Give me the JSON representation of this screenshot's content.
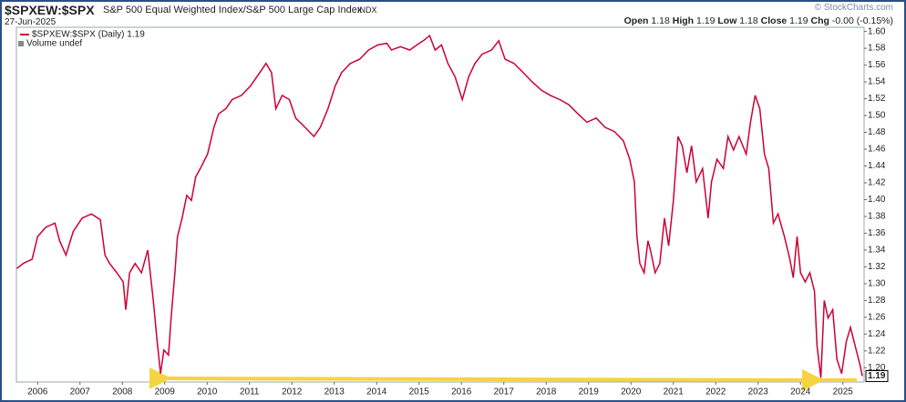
{
  "header": {
    "symbol": "$SPXEW:$SPX",
    "description": "S&P 500 Equal Weighted Index/S&P 500 Large Cap Index",
    "exchange": "INDX",
    "date": "27-Jun-2025",
    "brand": "© StockCharts.com",
    "quote": {
      "open_label": "Open",
      "open": 1.18,
      "high_label": "High",
      "high": 1.19,
      "low_label": "Low",
      "low": 1.18,
      "close_label": "Close",
      "close": 1.19,
      "chg_label": "Chg",
      "chg": "-0.00 (-0.15%)"
    }
  },
  "chart_data": {
    "type": "line",
    "volume_note": "Volume undef",
    "last_label": "1.19",
    "x": [
      2005.51,
      2005.66,
      2005.87,
      2006.0,
      2006.19,
      2006.41,
      2006.52,
      2006.67,
      2006.84,
      2007.05,
      2007.27,
      2007.48,
      2007.59,
      2007.7,
      2007.87,
      2008.02,
      2008.08,
      2008.17,
      2008.3,
      2008.45,
      2008.6,
      2008.73,
      2008.81,
      2008.9,
      2008.98,
      2009.09,
      2009.15,
      2009.24,
      2009.3,
      2009.41,
      2009.52,
      2009.63,
      2009.73,
      2009.84,
      2010.01,
      2010.16,
      2010.27,
      2010.44,
      2010.59,
      2010.81,
      2011.02,
      2011.24,
      2011.39,
      2011.52,
      2011.62,
      2011.77,
      2011.94,
      2012.09,
      2012.31,
      2012.52,
      2012.67,
      2012.85,
      2013.02,
      2013.17,
      2013.38,
      2013.6,
      2013.81,
      2014.03,
      2014.24,
      2014.35,
      2014.56,
      2014.78,
      2014.95,
      2015.1,
      2015.25,
      2015.38,
      2015.53,
      2015.68,
      2015.85,
      2016.02,
      2016.17,
      2016.32,
      2016.49,
      2016.71,
      2016.88,
      2017.03,
      2017.24,
      2017.46,
      2017.67,
      2017.89,
      2018.1,
      2018.32,
      2018.53,
      2018.75,
      2018.96,
      2019.18,
      2019.39,
      2019.61,
      2019.82,
      2019.97,
      2020.08,
      2020.14,
      2020.21,
      2020.31,
      2020.4,
      2020.46,
      2020.57,
      2020.68,
      2020.79,
      2020.89,
      2021.0,
      2021.11,
      2021.21,
      2021.32,
      2021.43,
      2021.54,
      2021.69,
      2021.82,
      2021.9,
      2022.03,
      2022.18,
      2022.29,
      2022.42,
      2022.55,
      2022.72,
      2022.82,
      2022.93,
      2023.04,
      2023.15,
      2023.25,
      2023.36,
      2023.47,
      2023.62,
      2023.75,
      2023.83,
      2023.92,
      2024.0,
      2024.11,
      2024.22,
      2024.33,
      2024.39,
      2024.48,
      2024.56,
      2024.65,
      2024.76,
      2024.86,
      2024.97,
      2025.08,
      2025.18,
      2025.29,
      2025.4,
      2025.46
    ],
    "series": [
      {
        "name": "$SPXEW:$SPX (Daily) 1.19",
        "color": "#cc0033",
        "values": [
          1.318,
          1.324,
          1.329,
          1.356,
          1.367,
          1.372,
          1.351,
          1.334,
          1.362,
          1.378,
          1.383,
          1.376,
          1.334,
          1.324,
          1.313,
          1.302,
          1.269,
          1.313,
          1.324,
          1.313,
          1.34,
          1.28,
          1.237,
          1.193,
          1.221,
          1.215,
          1.259,
          1.313,
          1.356,
          1.378,
          1.405,
          1.399,
          1.427,
          1.437,
          1.454,
          1.486,
          1.502,
          1.508,
          1.519,
          1.524,
          1.535,
          1.551,
          1.562,
          1.551,
          1.508,
          1.524,
          1.519,
          1.497,
          1.486,
          1.475,
          1.486,
          1.508,
          1.535,
          1.551,
          1.562,
          1.567,
          1.578,
          1.584,
          1.586,
          1.578,
          1.582,
          1.578,
          1.584,
          1.589,
          1.595,
          1.578,
          1.584,
          1.562,
          1.546,
          1.519,
          1.546,
          1.562,
          1.573,
          1.578,
          1.589,
          1.567,
          1.562,
          1.551,
          1.54,
          1.53,
          1.524,
          1.519,
          1.513,
          1.502,
          1.492,
          1.497,
          1.486,
          1.481,
          1.47,
          1.448,
          1.421,
          1.356,
          1.324,
          1.313,
          1.351,
          1.34,
          1.313,
          1.324,
          1.378,
          1.345,
          1.399,
          1.475,
          1.464,
          1.432,
          1.464,
          1.421,
          1.437,
          1.378,
          1.421,
          1.448,
          1.437,
          1.475,
          1.459,
          1.475,
          1.454,
          1.492,
          1.524,
          1.508,
          1.454,
          1.437,
          1.372,
          1.383,
          1.356,
          1.329,
          1.307,
          1.356,
          1.313,
          1.302,
          1.313,
          1.291,
          1.226,
          1.188,
          1.28,
          1.259,
          1.269,
          1.21,
          1.193,
          1.231,
          1.248,
          1.226,
          1.204,
          1.19
        ]
      }
    ],
    "xlim": [
      2005.5,
      2025.5
    ],
    "xticks": [
      2006,
      2007,
      2008,
      2009,
      2010,
      2011,
      2012,
      2013,
      2014,
      2015,
      2016,
      2017,
      2018,
      2019,
      2020,
      2021,
      2022,
      2023,
      2024,
      2025
    ],
    "ylim": [
      1.183,
      1.605
    ],
    "yticks": [
      {
        "value": 1.2,
        "label": "1.20"
      },
      1.22,
      1.24,
      1.26,
      1.28,
      {
        "value": 1.3,
        "label": "1.30"
      },
      1.32,
      1.34,
      1.36,
      1.38,
      {
        "value": 1.4,
        "label": "1.40"
      },
      1.42,
      1.44,
      1.46,
      1.48,
      {
        "value": 1.5,
        "label": "1.50"
      },
      1.52,
      1.54,
      1.56,
      1.58,
      {
        "value": 1.6,
        "label": "1.60"
      }
    ],
    "grid": false
  }
}
